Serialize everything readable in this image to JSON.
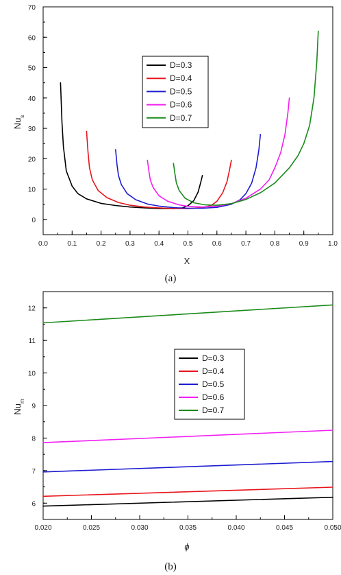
{
  "chart_data": [
    {
      "type": "line",
      "caption": "(a)",
      "xlabel": "X",
      "ylabel": "Nu",
      "ylabel_subscript": "s",
      "xlim": [
        0.0,
        1.0
      ],
      "ylim": [
        -5,
        70
      ],
      "xticks": [
        0.0,
        0.1,
        0.2,
        0.3,
        0.4,
        0.5,
        0.6,
        0.7,
        0.8,
        0.9,
        1.0
      ],
      "yticks": [
        0,
        10,
        20,
        30,
        40,
        50,
        60,
        70
      ],
      "legend_position": "center-left",
      "series": [
        {
          "name": "D=0.3",
          "color": "#000000",
          "x": [
            0.06,
            0.065,
            0.07,
            0.08,
            0.1,
            0.12,
            0.15,
            0.2,
            0.25,
            0.3,
            0.35,
            0.4,
            0.45,
            0.48,
            0.5,
            0.52,
            0.535,
            0.545,
            0.55
          ],
          "y": [
            45,
            32,
            24,
            16,
            11,
            8.5,
            6.8,
            5.3,
            4.6,
            4.1,
            3.8,
            3.6,
            3.6,
            3.8,
            4.5,
            6.2,
            9,
            12.5,
            14.5
          ]
        },
        {
          "name": "D=0.4",
          "color": "#e8141b",
          "x": [
            0.15,
            0.155,
            0.16,
            0.17,
            0.19,
            0.22,
            0.26,
            0.3,
            0.35,
            0.4,
            0.45,
            0.5,
            0.55,
            0.58,
            0.6,
            0.62,
            0.635,
            0.645,
            0.65
          ],
          "y": [
            29,
            22,
            17,
            13,
            9.5,
            7.2,
            5.6,
            4.7,
            4.1,
            3.8,
            3.6,
            3.6,
            3.9,
            4.6,
            6,
            8.8,
            12.5,
            17,
            19.5
          ]
        },
        {
          "name": "D=0.5",
          "color": "#1c1cd0",
          "x": [
            0.25,
            0.255,
            0.26,
            0.27,
            0.29,
            0.32,
            0.36,
            0.4,
            0.45,
            0.5,
            0.55,
            0.6,
            0.65,
            0.68,
            0.7,
            0.72,
            0.735,
            0.745,
            0.75
          ],
          "y": [
            23,
            18,
            14.5,
            11.5,
            8.5,
            6.5,
            5.1,
            4.4,
            3.9,
            3.7,
            3.7,
            4,
            5,
            6.5,
            8.5,
            12,
            17,
            23,
            28
          ]
        },
        {
          "name": "D=0.6",
          "color": "#f21ef2",
          "x": [
            0.36,
            0.365,
            0.37,
            0.38,
            0.4,
            0.43,
            0.47,
            0.5,
            0.55,
            0.6,
            0.65,
            0.7,
            0.75,
            0.78,
            0.8,
            0.82,
            0.835,
            0.845,
            0.85
          ],
          "y": [
            19.5,
            16,
            13,
            10.5,
            7.8,
            6,
            4.8,
            4.3,
            4.1,
            4.4,
            5.2,
            7,
            10,
            13,
            17,
            22,
            28,
            35,
            40
          ]
        },
        {
          "name": "D=0.7",
          "color": "#1a8a1a",
          "x": [
            0.45,
            0.455,
            0.46,
            0.47,
            0.49,
            0.52,
            0.56,
            0.6,
            0.65,
            0.7,
            0.75,
            0.8,
            0.85,
            0.88,
            0.9,
            0.92,
            0.935,
            0.945,
            0.95
          ],
          "y": [
            18.5,
            15,
            12,
            9.5,
            7,
            5.5,
            4.8,
            4.7,
            5.2,
            6.6,
            8.8,
            12,
            17,
            21,
            25,
            31,
            40,
            52,
            62
          ]
        }
      ]
    },
    {
      "type": "line",
      "caption": "(b)",
      "xlabel": "ϕ",
      "ylabel": "Nu",
      "ylabel_subscript": "m",
      "xlim": [
        0.02,
        0.05
      ],
      "ylim": [
        5.5,
        12.5
      ],
      "xticks": [
        "0.020",
        "0.025",
        "0.030",
        "0.035",
        "0.040",
        "0.045",
        "0.050"
      ],
      "yticks": [
        6,
        7,
        8,
        9,
        10,
        11,
        12
      ],
      "legend_position": "center-right",
      "series": [
        {
          "name": "D=0.3",
          "color": "#000000",
          "x": [
            0.02,
            0.05
          ],
          "y": [
            5.91,
            6.18
          ]
        },
        {
          "name": "D=0.4",
          "color": "#e8141b",
          "x": [
            0.02,
            0.05
          ],
          "y": [
            6.21,
            6.49
          ]
        },
        {
          "name": "D=0.5",
          "color": "#1c1cd0",
          "x": [
            0.02,
            0.05
          ],
          "y": [
            6.96,
            7.28
          ]
        },
        {
          "name": "D=0.6",
          "color": "#f21ef2",
          "x": [
            0.02,
            0.05
          ],
          "y": [
            7.86,
            8.24
          ]
        },
        {
          "name": "D=0.7",
          "color": "#1a8a1a",
          "x": [
            0.02,
            0.05
          ],
          "y": [
            11.54,
            12.09
          ]
        }
      ]
    }
  ]
}
